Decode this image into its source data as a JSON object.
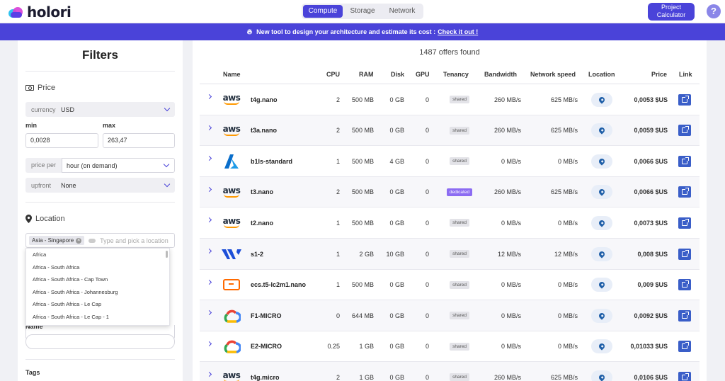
{
  "nav": {
    "brand": "holori",
    "tabs": [
      {
        "label": "Compute",
        "active": true
      },
      {
        "label": "Storage",
        "active": false
      },
      {
        "label": "Network",
        "active": false
      }
    ],
    "project_calculator_label": "Project Calculator",
    "help_label": "?"
  },
  "banner": {
    "text": "New tool to design your architecture and estimate its cost :",
    "link_text": "Check it out !"
  },
  "filters": {
    "title": "Filters",
    "price": {
      "heading": "Price",
      "currency_label": "currency",
      "currency_value": "USD",
      "min_label": "min",
      "min_value": "0,0028",
      "max_label": "max",
      "max_value": "263,47",
      "price_per_label": "price per",
      "price_per_value": "hour (on demand)",
      "upfront_label": "upfront",
      "upfront_value": "None"
    },
    "location": {
      "heading": "Location",
      "selected_tag": "Asia - Singapore",
      "placeholder": "Type and pick a location",
      "options": [
        "Africa",
        "Africa - South Africa",
        "Africa - South Africa - Cap Town",
        "Africa - South Africa - Johannesburg",
        "Africa - South Africa - Le Cap",
        "Africa - South Africa - Le Cap - 1"
      ]
    },
    "name_label": "Name",
    "tags_label": "Tags"
  },
  "results": {
    "count_text": "1487 offers found",
    "columns": [
      "Name",
      "CPU",
      "RAM",
      "Disk",
      "GPU",
      "Tenancy",
      "Bandwidth",
      "Network speed",
      "Location",
      "Price",
      "Link"
    ],
    "rows": [
      {
        "provider": "aws",
        "name": "t4g.nano",
        "cpu": "2",
        "ram": "500 MB",
        "disk": "0 GB",
        "gpu": "0",
        "tenancy": "shared",
        "bandwidth": "260 MB/s",
        "network_speed": "625 MB/s",
        "price": "0,0053 $US"
      },
      {
        "provider": "aws",
        "name": "t3a.nano",
        "cpu": "2",
        "ram": "500 MB",
        "disk": "0 GB",
        "gpu": "0",
        "tenancy": "shared",
        "bandwidth": "260 MB/s",
        "network_speed": "625 MB/s",
        "price": "0,0059 $US"
      },
      {
        "provider": "azure",
        "name": "b1ls-standard",
        "cpu": "1",
        "ram": "500 MB",
        "disk": "4 GB",
        "gpu": "0",
        "tenancy": "shared",
        "bandwidth": "0 MB/s",
        "network_speed": "0 MB/s",
        "price": "0,0066 $US"
      },
      {
        "provider": "aws",
        "name": "t3.nano",
        "cpu": "2",
        "ram": "500 MB",
        "disk": "0 GB",
        "gpu": "0",
        "tenancy": "dedicated",
        "bandwidth": "260 MB/s",
        "network_speed": "625 MB/s",
        "price": "0,0066 $US"
      },
      {
        "provider": "aws",
        "name": "t2.nano",
        "cpu": "1",
        "ram": "500 MB",
        "disk": "0 GB",
        "gpu": "0",
        "tenancy": "shared",
        "bandwidth": "0 MB/s",
        "network_speed": "0 MB/s",
        "price": "0,0073 $US"
      },
      {
        "provider": "vultr",
        "name": "s1-2",
        "cpu": "1",
        "ram": "2 GB",
        "disk": "10 GB",
        "gpu": "0",
        "tenancy": "shared",
        "bandwidth": "12 MB/s",
        "network_speed": "12 MB/s",
        "price": "0,008 $US"
      },
      {
        "provider": "alibaba",
        "name": "ecs.t5-lc2m1.nano",
        "cpu": "1",
        "ram": "500 MB",
        "disk": "0 GB",
        "gpu": "0",
        "tenancy": "shared",
        "bandwidth": "0 MB/s",
        "network_speed": "0 MB/s",
        "price": "0,009 $US"
      },
      {
        "provider": "gcp",
        "name": "F1-MICRO",
        "cpu": "0",
        "ram": "644 MB",
        "disk": "0 GB",
        "gpu": "0",
        "tenancy": "shared",
        "bandwidth": "0 MB/s",
        "network_speed": "0 MB/s",
        "price": "0,0092 $US"
      },
      {
        "provider": "gcp",
        "name": "E2-MICRO",
        "cpu": "0.25",
        "ram": "1 GB",
        "disk": "0 GB",
        "gpu": "0",
        "tenancy": "shared",
        "bandwidth": "0 MB/s",
        "network_speed": "0 MB/s",
        "price": "0,01033 $US"
      },
      {
        "provider": "aws",
        "name": "t4g.micro",
        "cpu": "2",
        "ram": "1 GB",
        "disk": "0 GB",
        "gpu": "0",
        "tenancy": "shared",
        "bandwidth": "260 MB/s",
        "network_speed": "625 MB/s",
        "price": "0,0106 $US"
      }
    ]
  },
  "colors": {
    "accent": "#4a43d9",
    "dedicated_badge": "#8c6cf2",
    "link_button": "#3a5ec8"
  }
}
